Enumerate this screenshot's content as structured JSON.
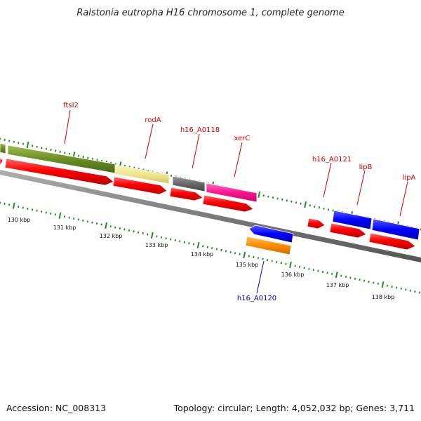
{
  "title": "Ralstonia eutropha H16 chromosome 1, complete genome",
  "accession": "Accession: NC_008313",
  "summary": "Topology: circular; Length: 4,052,032 bp; Genes: 3,711",
  "kbp_labels": [
    "130 kbp",
    "131 kbp",
    "132 kbp",
    "133 kbp",
    "134 kbp",
    "135 kbp",
    "136 kbp",
    "137 kbp",
    "138 kbp"
  ],
  "gene_labels": [
    {
      "text": "ftsI2",
      "color": "#cc0000"
    },
    {
      "text": "rodA",
      "color": "#cc0000"
    },
    {
      "text": "h16_A0118",
      "color": "#cc0000"
    },
    {
      "text": "xerC",
      "color": "#cc0000"
    },
    {
      "text": "h16_A0121",
      "color": "#cc0000"
    },
    {
      "text": "lipB",
      "color": "#cc0000"
    },
    {
      "text": "lipA",
      "color": "#cc0000"
    },
    {
      "text": "h16_A0120",
      "color": "#0000bb"
    }
  ],
  "colors": {
    "cds": "#ff0000",
    "ftsI2": "#6b8e23",
    "rodA": "#f0e68c",
    "h16_A0118": "#696969",
    "xerC": "#ff1493",
    "lip": "#0000ff",
    "h16_A0120_top": "#0000ff",
    "h16_A0120_bottom": "#ff8c00",
    "backbone": "#808080",
    "ticks": "#228b22"
  }
}
